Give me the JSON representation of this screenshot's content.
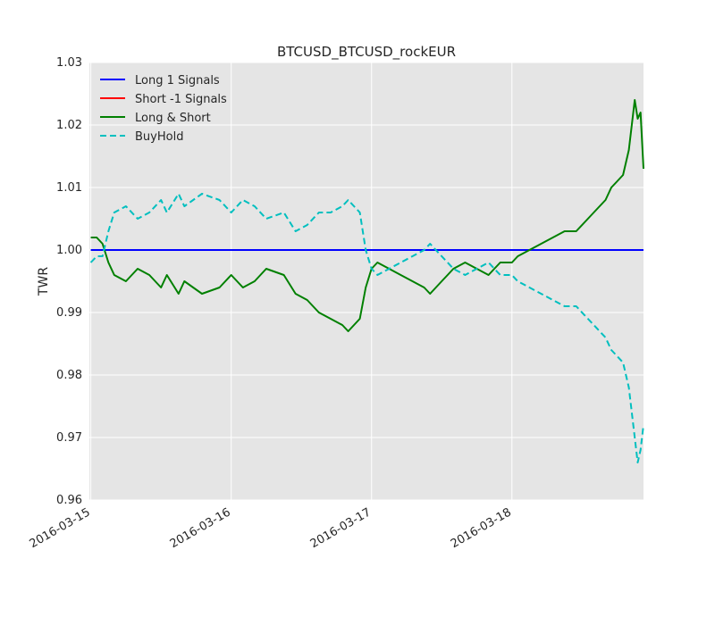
{
  "chart_data": {
    "type": "line",
    "title": "BTCUSD_BTCUSD_rockEUR",
    "xlabel": "",
    "ylabel": "TWR",
    "x_type": "date",
    "xlim": [
      "2016-03-14T23:45",
      "2016-03-18T22:30"
    ],
    "ylim": [
      0.96,
      1.03
    ],
    "x_ticks": [
      "2016-03-15",
      "2016-03-16",
      "2016-03-17",
      "2016-03-18"
    ],
    "y_ticks": [
      "0.96",
      "0.97",
      "0.98",
      "0.99",
      "1.00",
      "1.01",
      "1.02",
      "1.03"
    ],
    "grid": true,
    "background": "#e5e5e5",
    "legend_position": "top-left",
    "series": [
      {
        "name": "Long 1 Signals",
        "color": "#0000ff",
        "style": "solid",
        "points": [
          [
            "2016-03-15T00:00",
            1.0
          ],
          [
            "2016-03-18T22:30",
            1.0
          ]
        ]
      },
      {
        "name": "Short -1 Signals",
        "color": "#ff0000",
        "style": "solid",
        "points": []
      },
      {
        "name": "Long & Short",
        "color": "#008000",
        "style": "solid",
        "points": [
          [
            "2016-03-15T00:00",
            1.002
          ],
          [
            "2016-03-15T01:00",
            1.002
          ],
          [
            "2016-03-15T02:00",
            1.001
          ],
          [
            "2016-03-15T03:00",
            0.998
          ],
          [
            "2016-03-15T04:00",
            0.996
          ],
          [
            "2016-03-15T06:00",
            0.995
          ],
          [
            "2016-03-15T08:00",
            0.997
          ],
          [
            "2016-03-15T10:00",
            0.996
          ],
          [
            "2016-03-15T12:00",
            0.994
          ],
          [
            "2016-03-15T13:00",
            0.996
          ],
          [
            "2016-03-15T15:00",
            0.993
          ],
          [
            "2016-03-15T16:00",
            0.995
          ],
          [
            "2016-03-15T19:00",
            0.993
          ],
          [
            "2016-03-15T22:00",
            0.994
          ],
          [
            "2016-03-16T00:00",
            0.996
          ],
          [
            "2016-03-16T02:00",
            0.994
          ],
          [
            "2016-03-16T04:00",
            0.995
          ],
          [
            "2016-03-16T06:00",
            0.997
          ],
          [
            "2016-03-16T09:00",
            0.996
          ],
          [
            "2016-03-16T11:00",
            0.993
          ],
          [
            "2016-03-16T13:00",
            0.992
          ],
          [
            "2016-03-16T15:00",
            0.99
          ],
          [
            "2016-03-16T17:00",
            0.989
          ],
          [
            "2016-03-16T19:00",
            0.988
          ],
          [
            "2016-03-16T20:00",
            0.987
          ],
          [
            "2016-03-16T21:00",
            0.988
          ],
          [
            "2016-03-16T22:00",
            0.989
          ],
          [
            "2016-03-16T23:00",
            0.994
          ],
          [
            "2016-03-17T00:00",
            0.997
          ],
          [
            "2016-03-17T01:00",
            0.998
          ],
          [
            "2016-03-17T03:00",
            0.997
          ],
          [
            "2016-03-17T05:00",
            0.996
          ],
          [
            "2016-03-17T07:00",
            0.995
          ],
          [
            "2016-03-17T09:00",
            0.994
          ],
          [
            "2016-03-17T10:00",
            0.993
          ],
          [
            "2016-03-17T12:00",
            0.995
          ],
          [
            "2016-03-17T13:00",
            0.996
          ],
          [
            "2016-03-17T14:00",
            0.997
          ],
          [
            "2016-03-17T16:00",
            0.998
          ],
          [
            "2016-03-17T18:00",
            0.997
          ],
          [
            "2016-03-17T20:00",
            0.996
          ],
          [
            "2016-03-17T22:00",
            0.998
          ],
          [
            "2016-03-18T00:00",
            0.998
          ],
          [
            "2016-03-18T01:00",
            0.999
          ],
          [
            "2016-03-18T03:00",
            1.0
          ],
          [
            "2016-03-18T05:00",
            1.001
          ],
          [
            "2016-03-18T07:00",
            1.002
          ],
          [
            "2016-03-18T09:00",
            1.003
          ],
          [
            "2016-03-18T11:00",
            1.003
          ],
          [
            "2016-03-18T13:00",
            1.005
          ],
          [
            "2016-03-18T15:00",
            1.007
          ],
          [
            "2016-03-18T16:00",
            1.008
          ],
          [
            "2016-03-18T17:00",
            1.01
          ],
          [
            "2016-03-18T18:00",
            1.011
          ],
          [
            "2016-03-18T19:00",
            1.012
          ],
          [
            "2016-03-18T20:00",
            1.016
          ],
          [
            "2016-03-18T21:00",
            1.024
          ],
          [
            "2016-03-18T21:30",
            1.021
          ],
          [
            "2016-03-18T22:00",
            1.022
          ],
          [
            "2016-03-18T22:30",
            1.013
          ]
        ]
      },
      {
        "name": "BuyHold",
        "color": "#00bfbf",
        "style": "dashed",
        "points": [
          [
            "2016-03-15T00:00",
            0.998
          ],
          [
            "2016-03-15T01:00",
            0.999
          ],
          [
            "2016-03-15T02:00",
            0.999
          ],
          [
            "2016-03-15T03:00",
            1.003
          ],
          [
            "2016-03-15T04:00",
            1.006
          ],
          [
            "2016-03-15T06:00",
            1.007
          ],
          [
            "2016-03-15T08:00",
            1.005
          ],
          [
            "2016-03-15T10:00",
            1.006
          ],
          [
            "2016-03-15T12:00",
            1.008
          ],
          [
            "2016-03-15T13:00",
            1.006
          ],
          [
            "2016-03-15T15:00",
            1.009
          ],
          [
            "2016-03-15T16:00",
            1.007
          ],
          [
            "2016-03-15T19:00",
            1.009
          ],
          [
            "2016-03-15T22:00",
            1.008
          ],
          [
            "2016-03-16T00:00",
            1.006
          ],
          [
            "2016-03-16T02:00",
            1.008
          ],
          [
            "2016-03-16T04:00",
            1.007
          ],
          [
            "2016-03-16T06:00",
            1.005
          ],
          [
            "2016-03-16T09:00",
            1.006
          ],
          [
            "2016-03-16T11:00",
            1.003
          ],
          [
            "2016-03-16T13:00",
            1.004
          ],
          [
            "2016-03-16T15:00",
            1.006
          ],
          [
            "2016-03-16T17:00",
            1.006
          ],
          [
            "2016-03-16T19:00",
            1.007
          ],
          [
            "2016-03-16T20:00",
            1.008
          ],
          [
            "2016-03-16T21:00",
            1.007
          ],
          [
            "2016-03-16T22:00",
            1.006
          ],
          [
            "2016-03-16T23:00",
            1.0
          ],
          [
            "2016-03-17T00:00",
            0.997
          ],
          [
            "2016-03-17T01:00",
            0.996
          ],
          [
            "2016-03-17T03:00",
            0.997
          ],
          [
            "2016-03-17T05:00",
            0.998
          ],
          [
            "2016-03-17T07:00",
            0.999
          ],
          [
            "2016-03-17T09:00",
            1.0
          ],
          [
            "2016-03-17T10:00",
            1.001
          ],
          [
            "2016-03-17T12:00",
            0.999
          ],
          [
            "2016-03-17T13:00",
            0.998
          ],
          [
            "2016-03-17T14:00",
            0.997
          ],
          [
            "2016-03-17T16:00",
            0.996
          ],
          [
            "2016-03-17T18:00",
            0.997
          ],
          [
            "2016-03-17T20:00",
            0.998
          ],
          [
            "2016-03-17T22:00",
            0.996
          ],
          [
            "2016-03-18T00:00",
            0.996
          ],
          [
            "2016-03-18T01:00",
            0.995
          ],
          [
            "2016-03-18T03:00",
            0.994
          ],
          [
            "2016-03-18T05:00",
            0.993
          ],
          [
            "2016-03-18T07:00",
            0.992
          ],
          [
            "2016-03-18T09:00",
            0.991
          ],
          [
            "2016-03-18T11:00",
            0.991
          ],
          [
            "2016-03-18T13:00",
            0.989
          ],
          [
            "2016-03-18T15:00",
            0.987
          ],
          [
            "2016-03-18T16:00",
            0.986
          ],
          [
            "2016-03-18T17:00",
            0.984
          ],
          [
            "2016-03-18T18:00",
            0.983
          ],
          [
            "2016-03-18T19:00",
            0.982
          ],
          [
            "2016-03-18T20:00",
            0.978
          ],
          [
            "2016-03-18T21:00",
            0.97
          ],
          [
            "2016-03-18T21:30",
            0.966
          ],
          [
            "2016-03-18T22:00",
            0.968
          ],
          [
            "2016-03-18T22:30",
            0.972
          ]
        ]
      }
    ]
  }
}
